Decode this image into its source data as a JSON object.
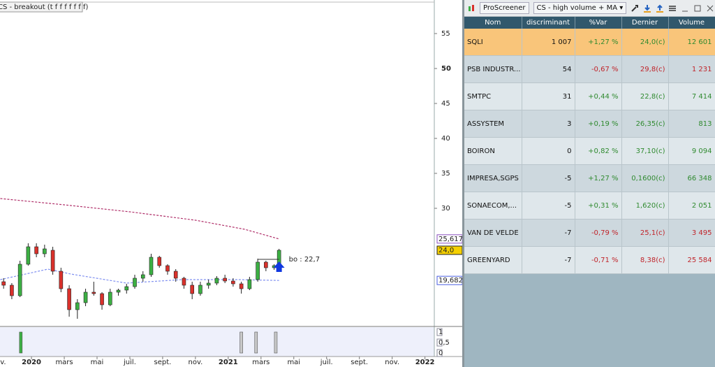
{
  "chart_data": {
    "type": "candlestick",
    "title": "CS - breakout (t f f f f f f f)",
    "x": [
      -1.7,
      -1.2,
      -0.7,
      -0.2,
      0.3,
      0.8,
      1.3,
      1.8,
      2.3,
      2.8,
      3.3,
      3.8,
      4.3,
      4.8,
      5.3,
      5.8,
      6.3,
      6.8,
      7.3,
      7.8,
      8.3,
      8.8,
      9.3,
      9.8,
      10.3,
      10.8,
      11.3,
      11.8,
      12.3,
      12.8,
      13.3,
      13.8,
      14.3,
      14.8,
      15.1
    ],
    "open": [
      19.5,
      19,
      17.5,
      22,
      24.5,
      23.5,
      24,
      21,
      18.5,
      15.5,
      16.5,
      18,
      17.8,
      16.2,
      18,
      18.3,
      18.8,
      20,
      20.5,
      23,
      21.8,
      21,
      20,
      19,
      17.8,
      19,
      19.3,
      20,
      19.6,
      19.2,
      18.5,
      19.8,
      22.3,
      21.5,
      21.8
    ],
    "high": [
      20,
      19.3,
      22.5,
      25,
      25,
      24.8,
      24.5,
      21.5,
      19,
      17,
      18.5,
      19.5,
      18,
      18.5,
      18.5,
      19.2,
      20.5,
      21,
      23.5,
      23.2,
      22,
      21.3,
      20.2,
      19.5,
      19.5,
      19.8,
      20.3,
      20.5,
      20,
      19.5,
      20.2,
      22.8,
      22.5,
      22,
      24.2
    ],
    "low": [
      18.5,
      17,
      17.3,
      21.8,
      23,
      23,
      20.5,
      18,
      14.5,
      14.2,
      16,
      17.5,
      15.5,
      16,
      17.5,
      17.8,
      18.5,
      19.5,
      20.2,
      21.5,
      20.5,
      19.5,
      18.5,
      17,
      17.5,
      18.5,
      19,
      19.3,
      18.8,
      17.8,
      18.3,
      19.5,
      21,
      21.2,
      21.5
    ],
    "close": [
      19,
      17.5,
      22,
      24.5,
      23.5,
      24.2,
      21,
      18.5,
      15.5,
      16.5,
      18,
      17.8,
      16.2,
      18,
      18.3,
      18.8,
      20,
      20.5,
      23,
      21.8,
      21,
      20,
      19,
      17.8,
      19,
      19.3,
      20,
      19.6,
      19.2,
      18.5,
      19.8,
      22.3,
      21.5,
      21.8,
      24
    ],
    "up_color": "#3cb043",
    "down_color": "#d9312b",
    "xlim": [
      -1.92,
      24.57
    ],
    "xticks": [
      {
        "value": -2,
        "label": "nov."
      },
      {
        "value": 0,
        "label": "2020"
      },
      {
        "value": 2,
        "label": "mars"
      },
      {
        "value": 4,
        "label": "mai"
      },
      {
        "value": 6,
        "label": "juil."
      },
      {
        "value": 8,
        "label": "sept."
      },
      {
        "value": 10,
        "label": "nov."
      },
      {
        "value": 12,
        "label": "2021"
      },
      {
        "value": 14,
        "label": "mars"
      },
      {
        "value": 16,
        "label": "mai"
      },
      {
        "value": 18,
        "label": "juil."
      },
      {
        "value": 20,
        "label": "sept."
      },
      {
        "value": 22,
        "label": "nov."
      },
      {
        "value": 24,
        "label": "2022"
      }
    ],
    "ylim": [
      13.3,
      59.3
    ],
    "yticks": [
      30,
      35,
      40,
      45,
      50,
      55
    ],
    "moving_averages": [
      {
        "color": "#b0306a",
        "x": [
          -1.9,
          2,
          6,
          10,
          13,
          15.1
        ],
        "values": [
          31.4,
          30.5,
          29.5,
          28.3,
          27,
          25.617
        ]
      },
      {
        "color": "#7f8ff0",
        "x": [
          -1.9,
          1,
          2.4,
          5.8,
          9.2,
          12.6,
          15.1
        ],
        "values": [
          19.8,
          21.3,
          20.6,
          19.3,
          19.8,
          19.8,
          19.682
        ]
      }
    ],
    "price_labels": [
      {
        "value": 25.617,
        "label": "25,617",
        "color": "#8a4fc0",
        "fill": "#ffffff"
      },
      {
        "value": 24.0,
        "label": "24,0",
        "color": "#222222",
        "fill": "#f5d000"
      },
      {
        "value": 19.682,
        "label": "19,682",
        "color": "#4a5ee0",
        "fill": "#ffffff"
      }
    ],
    "annotation": {
      "text": "bo : 22,7",
      "value": 22.7,
      "color": "#3a9a3a"
    },
    "indicator": {
      "x": [
        -0.65,
        12.8,
        13.7,
        14.9
      ],
      "values": [
        1,
        1,
        1,
        1
      ],
      "colors": [
        "#3cb043",
        "#c8c8c8",
        "#c8c8c8",
        "#c8c8c8"
      ],
      "ylim": [
        0,
        1.1
      ],
      "yticks": [
        1,
        {
          "value": 0.5,
          "label": "0,5"
        },
        0
      ]
    }
  },
  "screener": {
    "title": "ProScreener",
    "list": "CS - high volume + MA",
    "columns": [
      "Nom",
      "discriminant",
      "%Var",
      "Dernier",
      "Volume"
    ],
    "rows": [
      [
        "SQLI",
        "1 007",
        "+1,27 %",
        "24,0(c)",
        "12 601"
      ],
      [
        "PSB INDUSTR...",
        "54",
        "-0,67 %",
        "29,8(c)",
        "1 231"
      ],
      [
        "SMTPC",
        "31",
        "+0,44 %",
        "22,8(c)",
        "7 414"
      ],
      [
        "ASSYSTEM",
        "3",
        "+0,19 %",
        "26,35(c)",
        "813"
      ],
      [
        "BOIRON",
        "0",
        "+0,82 %",
        "37,10(c)",
        "9 094"
      ],
      [
        "IMPRESA,SGPS",
        "-5",
        "+1,27 %",
        "0,1600(c)",
        "66 348"
      ],
      [
        "SONAECOM,...",
        "-5",
        "+0,31 %",
        "1,620(c)",
        "2 051"
      ],
      [
        "VAN DE VELDE",
        "-7",
        "-0,79 %",
        "25,1(c)",
        "3 495"
      ],
      [
        "GREENYARD",
        "-7",
        "-0,71 %",
        "8,38(c)",
        "25 584"
      ]
    ]
  }
}
